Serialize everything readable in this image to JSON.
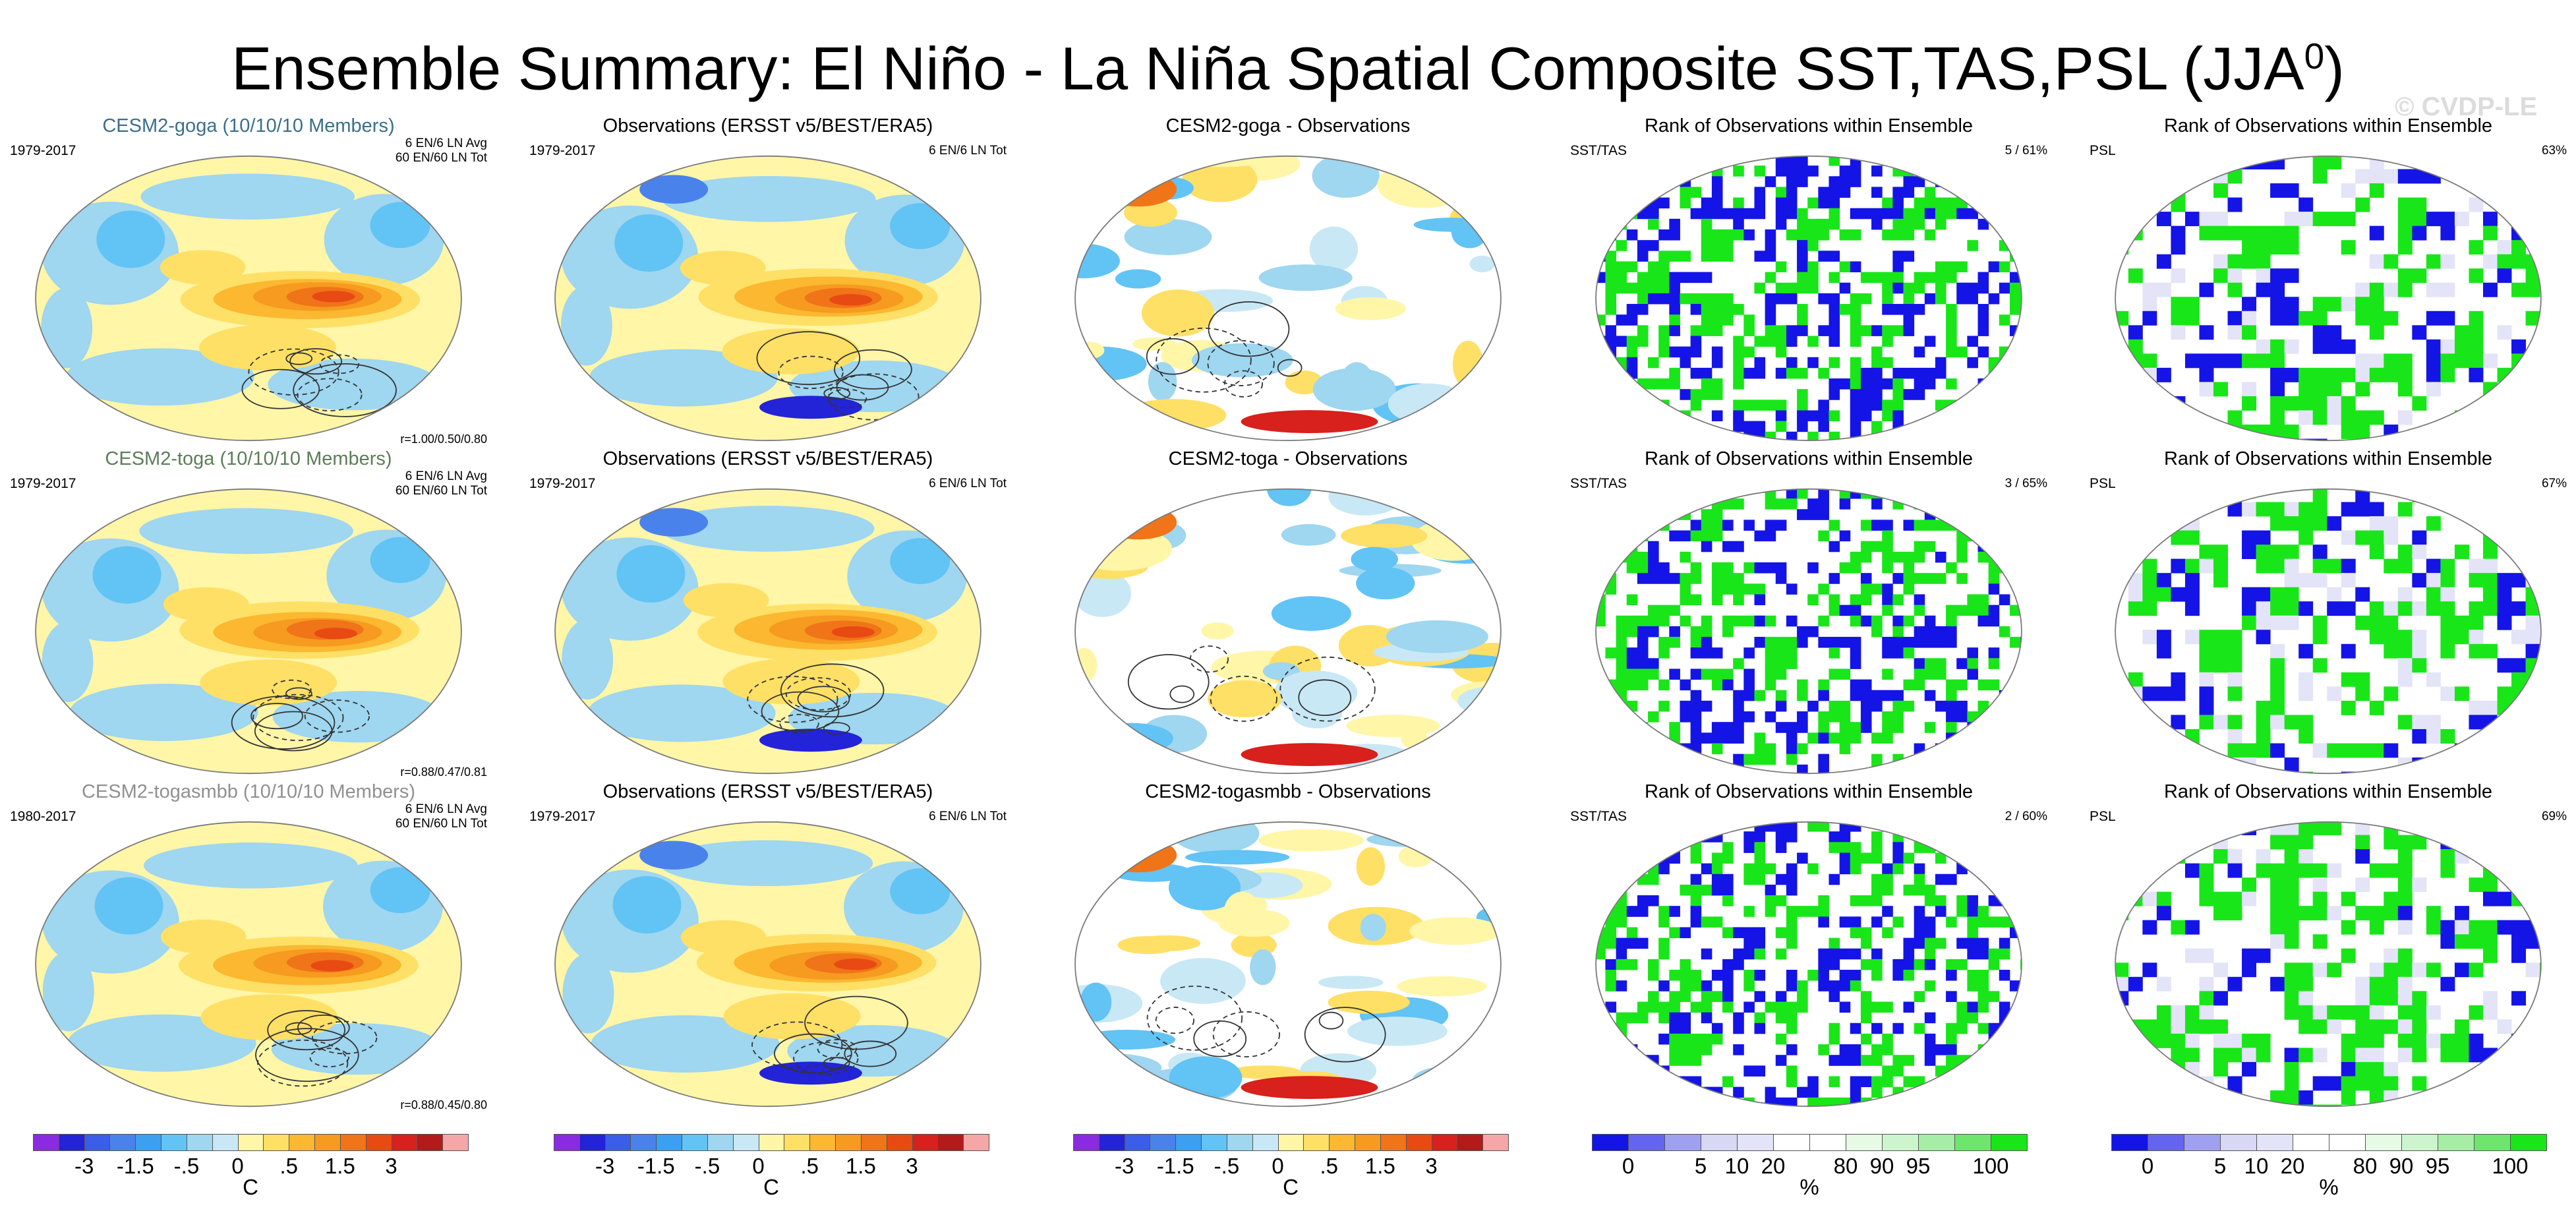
{
  "title_main": "Ensemble Summary: El Niño - La Niña Spatial Composite SST,TAS,PSL (JJA",
  "title_sup": "0",
  "title_close": ")",
  "watermark": "© CVDP-LE",
  "chart_data": {
    "type": "heatmap",
    "description_rows": [
      {
        "model": "CESM2-goga",
        "ensemble_panel": {
          "title": "CESM2-goga (10/10/10 Members)",
          "period": "1979-2017",
          "note1": "6 EN/6 LN Avg",
          "note2": "60 EN/60 LN Tot",
          "corr": "r=1.00/0.50/0.80"
        },
        "obs_panel": {
          "title": "Observations (ERSST v5/BEST/ERA5)",
          "period": "1979-2017",
          "note": "6 EN/6 LN Tot"
        },
        "diff_panel": {
          "title": "CESM2-goga - Observations"
        },
        "rank_sst_panel": {
          "title": "Rank of Observations within Ensemble",
          "var": "SST/TAS",
          "stat": "5 /  61%"
        },
        "rank_psl_panel": {
          "title": "Rank of Observations within Ensemble",
          "var": "PSL",
          "stat": "63%"
        }
      },
      {
        "model": "CESM2-toga",
        "ensemble_panel": {
          "title": "CESM2-toga (10/10/10 Members)",
          "period": "1979-2017",
          "note1": "6 EN/6 LN Avg",
          "note2": "60 EN/60 LN Tot",
          "corr": "r=0.88/0.47/0.81"
        },
        "obs_panel": {
          "title": "Observations (ERSST v5/BEST/ERA5)",
          "period": "1979-2017",
          "note": "6 EN/6 LN Tot"
        },
        "diff_panel": {
          "title": "CESM2-toga - Observations"
        },
        "rank_sst_panel": {
          "title": "Rank of Observations within Ensemble",
          "var": "SST/TAS",
          "stat": "3 /  65%"
        },
        "rank_psl_panel": {
          "title": "Rank of Observations within Ensemble",
          "var": "PSL",
          "stat": "67%"
        }
      },
      {
        "model": "CESM2-togasmbb",
        "ensemble_panel": {
          "title": "CESM2-togasmbb (10/10/10 Members)",
          "period": "1980-2017",
          "note1": "6 EN/6 LN Avg",
          "note2": "60 EN/60 LN Tot",
          "corr": "r=0.88/0.45/0.80"
        },
        "obs_panel": {
          "title": "Observations (ERSST v5/BEST/ERA5)",
          "period": "1979-2017",
          "note": "6 EN/6 LN Tot"
        },
        "diff_panel": {
          "title": "CESM2-togasmbb - Observations"
        },
        "rank_sst_panel": {
          "title": "Rank of Observations within Ensemble",
          "var": "SST/TAS",
          "stat": "2 /  60%"
        },
        "rank_psl_panel": {
          "title": "Rank of Observations within Ensemble",
          "var": "PSL",
          "stat": "69%"
        }
      }
    ],
    "temp_colorbar": {
      "unit": "C",
      "labels": [
        "-3",
        "-1.5",
        "-.5",
        "0",
        ".5",
        "1.5",
        "3"
      ],
      "colors": [
        "#8a2be2",
        "#2323d8",
        "#3a5ee8",
        "#4a82ec",
        "#3c9ff0",
        "#62c3f5",
        "#9fd6f0",
        "#c9e8f5",
        "#fff6a8",
        "#ffe066",
        "#fbb830",
        "#f69a20",
        "#f07418",
        "#e84a14",
        "#d8201c",
        "#b31a1a",
        "#f5a6a6"
      ]
    },
    "rank_colorbar": {
      "unit": "%",
      "labels": [
        "0",
        "5",
        "10",
        "20",
        "80",
        "90",
        "95",
        "100"
      ],
      "colors": [
        "#1414e6",
        "#6464f0",
        "#a0a0f0",
        "#d8d8f4",
        "#e4e4f8",
        "#ffffff",
        "#ffffff",
        "#e6fae6",
        "#cdf5cd",
        "#a6eea6",
        "#6ee66e",
        "#19e619"
      ]
    }
  }
}
